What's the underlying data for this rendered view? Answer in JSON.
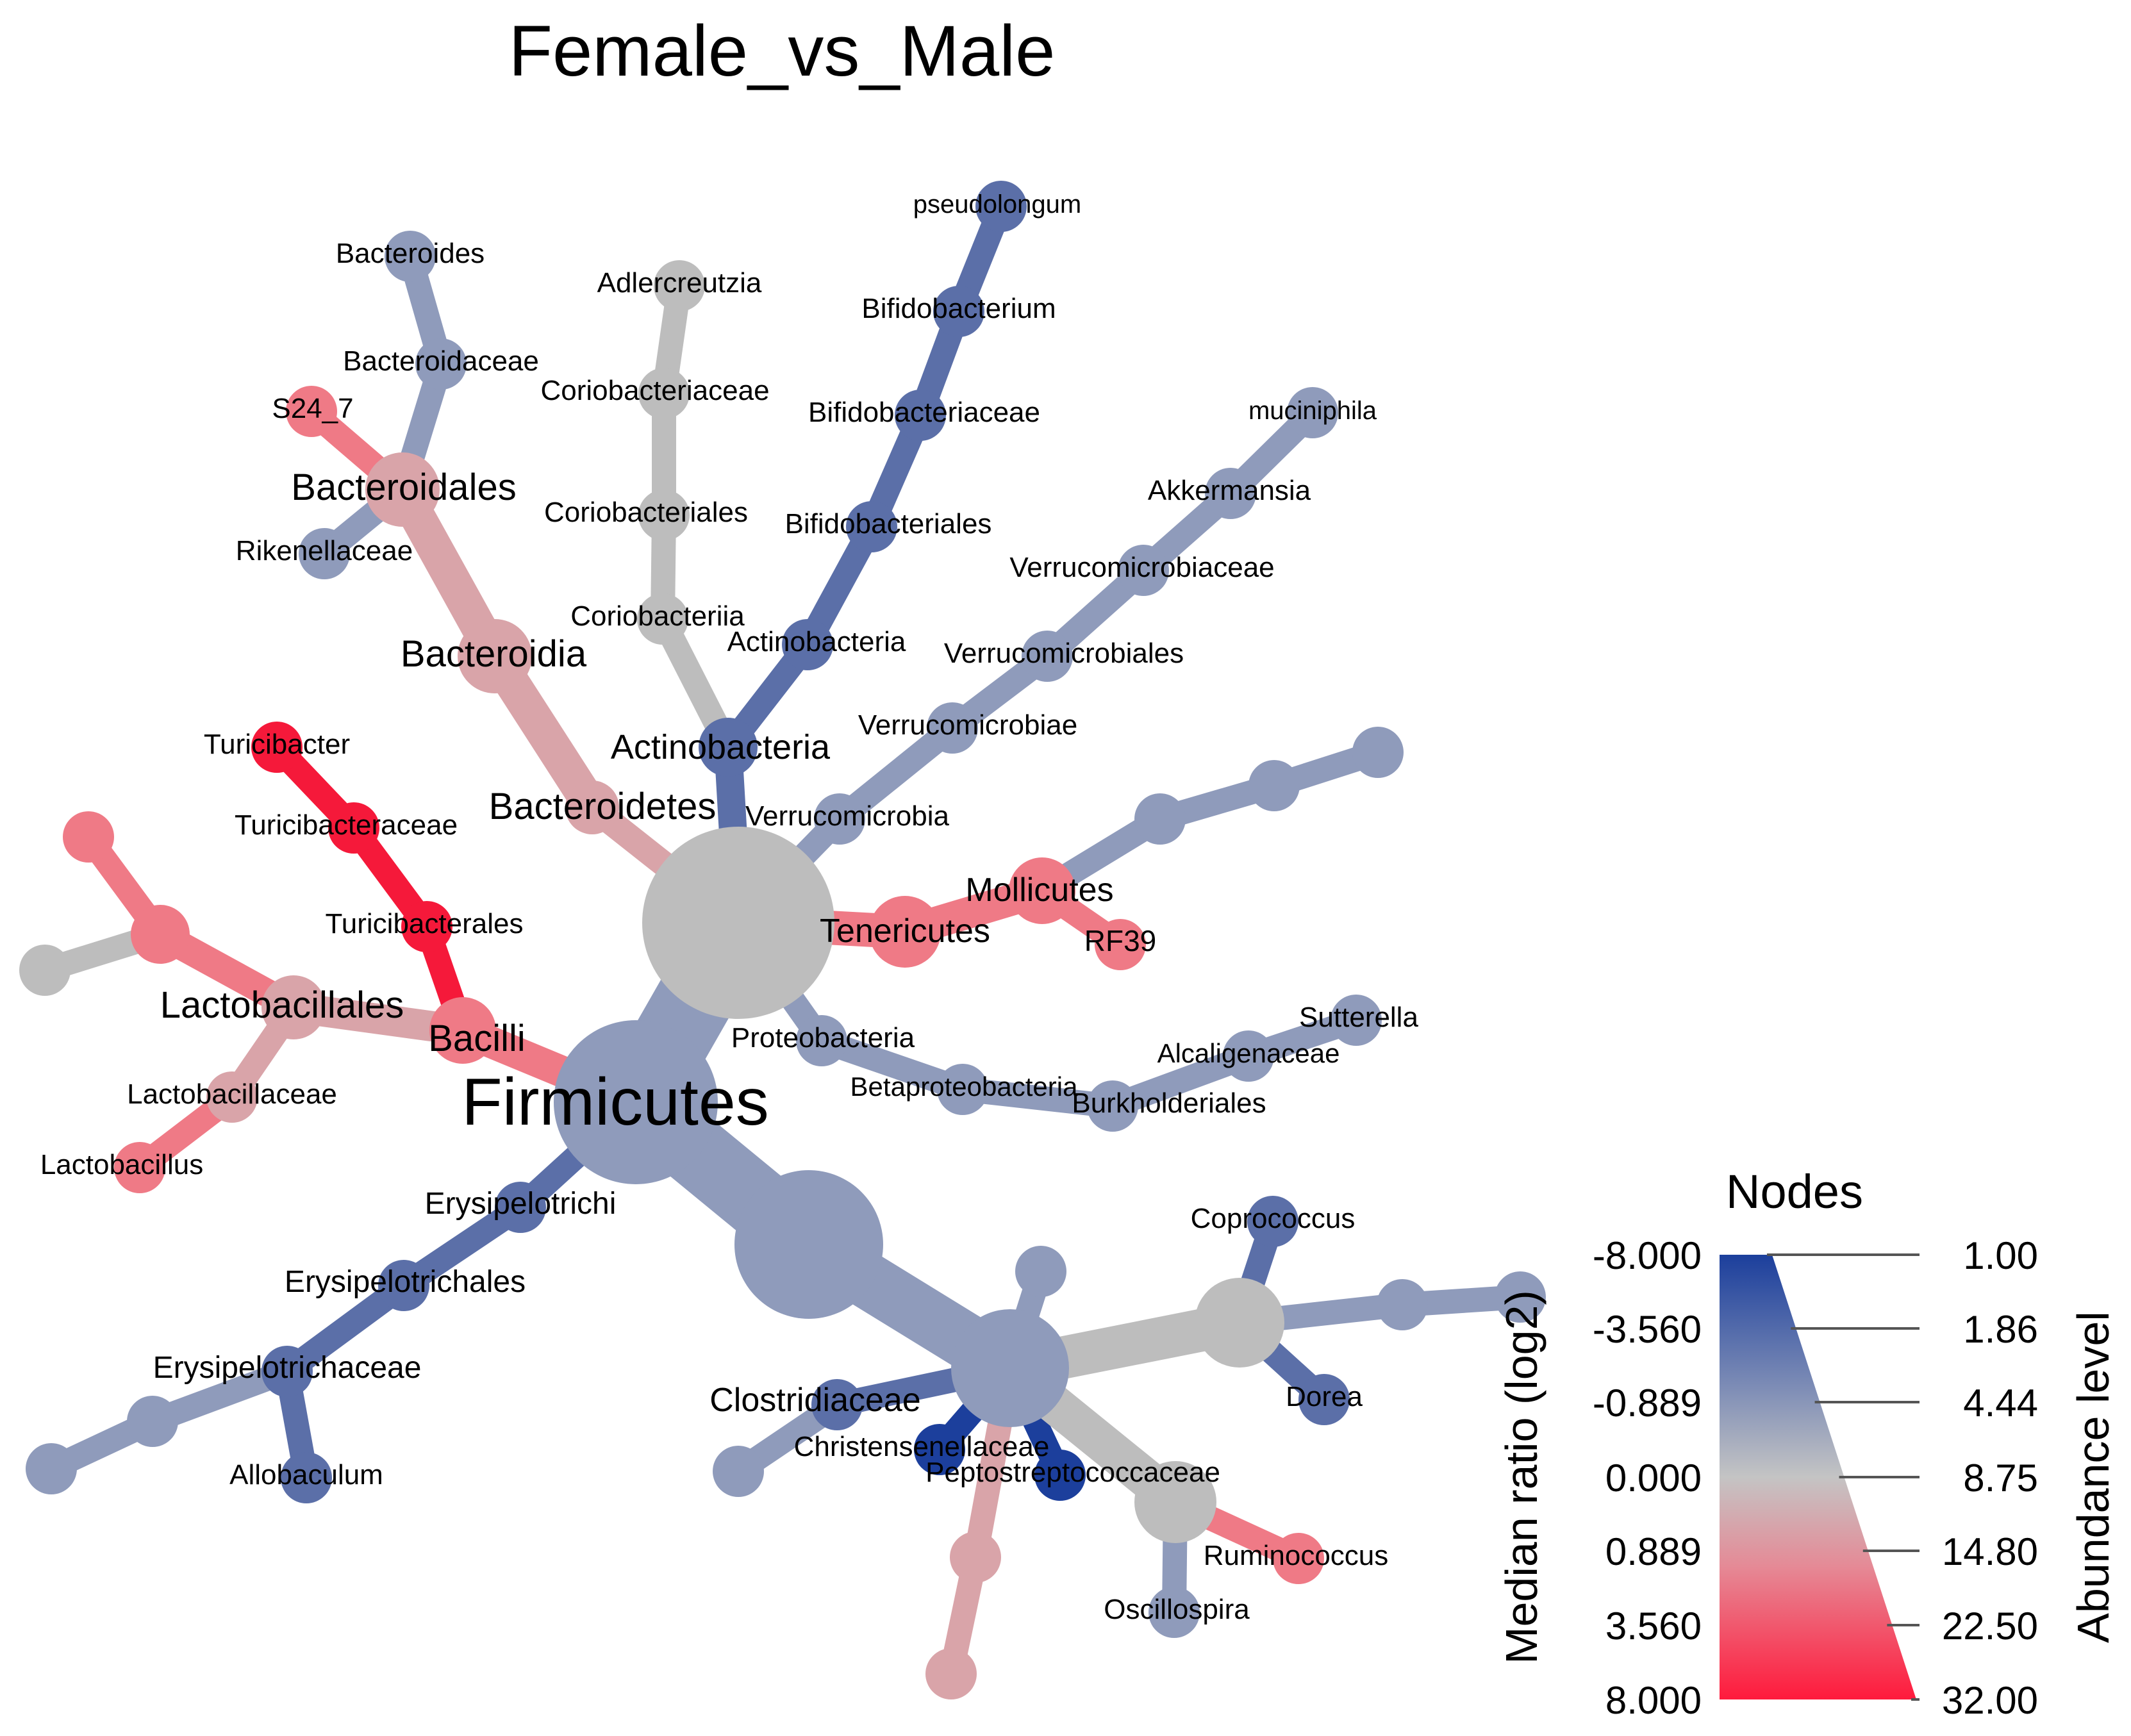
{
  "title": "Female_vs_Male",
  "colors": {
    "neg_strong": "#1c3f9c",
    "neg_mid": "#5b6fa8",
    "neg_light": "#8f9bbb",
    "neutral": "#bdbdbd",
    "pos_light": "#d9a4a9",
    "pos_mid": "#ef7a86",
    "pos_strong": "#f5193a"
  },
  "nodes": [
    {
      "id": "root",
      "label": "",
      "color": "neutral"
    },
    {
      "id": "firmicutes",
      "label": "Firmicutes",
      "color": "neg_light"
    },
    {
      "id": "bacilli",
      "label": "Bacilli",
      "color": "pos_mid"
    },
    {
      "id": "lactobacillales",
      "label": "Lactobacillales",
      "color": "pos_light"
    },
    {
      "id": "lactobacillaceae",
      "label": "Lactobacillaceae",
      "color": "pos_light"
    },
    {
      "id": "lactobacillus",
      "label": "Lactobacillus",
      "color": "pos_mid"
    },
    {
      "id": "lac_u1",
      "label": "",
      "color": "pos_mid"
    },
    {
      "id": "lac_u2",
      "label": "",
      "color": "pos_mid"
    },
    {
      "id": "lac_u3",
      "label": "",
      "color": "neutral"
    },
    {
      "id": "turicibacterales",
      "label": "Turicibacterales",
      "color": "pos_strong"
    },
    {
      "id": "turicibacteraceae",
      "label": "Turicibacteraceae",
      "color": "pos_strong"
    },
    {
      "id": "turicibacter",
      "label": "Turicibacter",
      "color": "pos_strong"
    },
    {
      "id": "erysipelotrichi",
      "label": "Erysipelotrichi",
      "color": "neg_mid"
    },
    {
      "id": "erysipelotrichales",
      "label": "Erysipelotrichales",
      "color": "neg_mid"
    },
    {
      "id": "erysipelotrichaceae",
      "label": "Erysipelotrichaceae",
      "color": "neg_mid"
    },
    {
      "id": "allobaculum",
      "label": "Allobaculum",
      "color": "neg_mid"
    },
    {
      "id": "ery_u1",
      "label": "",
      "color": "neg_light"
    },
    {
      "id": "ery_u2",
      "label": "",
      "color": "neg_light"
    },
    {
      "id": "clostridia",
      "label": "",
      "color": "neg_light"
    },
    {
      "id": "clostridiales",
      "label": "",
      "color": "neg_light"
    },
    {
      "id": "clo_top",
      "label": "",
      "color": "neg_light"
    },
    {
      "id": "lachnospiraceae",
      "label": "",
      "color": "neutral"
    },
    {
      "id": "coprococcus",
      "label": "Coprococcus",
      "color": "neg_mid"
    },
    {
      "id": "dorea",
      "label": "Dorea",
      "color": "neg_mid"
    },
    {
      "id": "lach_u1",
      "label": "",
      "color": "neg_light"
    },
    {
      "id": "lach_u2",
      "label": "",
      "color": "neg_light"
    },
    {
      "id": "clostridiaceae",
      "label": "Clostridiaceae",
      "color": "neg_mid"
    },
    {
      "id": "clostridiaceae_g",
      "label": "",
      "color": "neg_light"
    },
    {
      "id": "christensenellaceae",
      "label": "Christensenellaceae",
      "color": "neg_strong"
    },
    {
      "id": "peptostreptococcaceae",
      "label": "Peptostreptococcaceae",
      "color": "neg_strong"
    },
    {
      "id": "clo_u1",
      "label": "",
      "color": "pos_light"
    },
    {
      "id": "clo_u2",
      "label": "",
      "color": "pos_light"
    },
    {
      "id": "ruminococcaceae",
      "label": "",
      "color": "neutral"
    },
    {
      "id": "ruminococcus",
      "label": "Ruminococcus",
      "color": "pos_mid"
    },
    {
      "id": "oscillospira",
      "label": "Oscillospira",
      "color": "neg_light"
    },
    {
      "id": "bacteroidetes",
      "label": "Bacteroidetes",
      "color": "pos_light"
    },
    {
      "id": "bacteroidia",
      "label": "Bacteroidia",
      "color": "pos_light"
    },
    {
      "id": "bacteroidales",
      "label": "Bacteroidales",
      "color": "pos_light"
    },
    {
      "id": "s24_7",
      "label": "S24_7",
      "color": "pos_mid"
    },
    {
      "id": "bacteroidaceae",
      "label": "Bacteroidaceae",
      "color": "neg_light"
    },
    {
      "id": "bacteroides",
      "label": "Bacteroides",
      "color": "neg_light"
    },
    {
      "id": "rikenellaceae",
      "label": "Rikenellaceae",
      "color": "neg_light"
    },
    {
      "id": "actinobacteria_p",
      "label": "Actinobacteria",
      "color": "neg_mid"
    },
    {
      "id": "coriobacteriia",
      "label": "Coriobacteriia",
      "color": "neutral"
    },
    {
      "id": "coriobacteriales",
      "label": "Coriobacteriales",
      "color": "neutral"
    },
    {
      "id": "coriobacteriaceae",
      "label": "Coriobacteriaceae",
      "color": "neutral"
    },
    {
      "id": "adlercreutzia",
      "label": "Adlercreutzia",
      "color": "neutral"
    },
    {
      "id": "actinobacteria_c",
      "label": "Actinobacteria",
      "color": "neg_mid"
    },
    {
      "id": "bifidobacteriales",
      "label": "Bifidobacteriales",
      "color": "neg_mid"
    },
    {
      "id": "bifidobacteriaceae",
      "label": "Bifidobacteriaceae",
      "color": "neg_mid"
    },
    {
      "id": "bifidobacterium",
      "label": "Bifidobacterium",
      "color": "neg_mid"
    },
    {
      "id": "pseudolongum",
      "label": "pseudolongum",
      "color": "neg_mid"
    },
    {
      "id": "verrucomicrobia",
      "label": "Verrucomicrobia",
      "color": "neg_light"
    },
    {
      "id": "verrucomicrobiae",
      "label": "Verrucomicrobiae",
      "color": "neg_light"
    },
    {
      "id": "verrucomicrobiales",
      "label": "Verrucomicrobiales",
      "color": "neg_light"
    },
    {
      "id": "verrucomicrobiaceae",
      "label": "Verrucomicrobiaceae",
      "color": "neg_light"
    },
    {
      "id": "akkermansia",
      "label": "Akkermansia",
      "color": "neg_light"
    },
    {
      "id": "muciniphila",
      "label": "muciniphila",
      "color": "neg_light"
    },
    {
      "id": "tenericutes",
      "label": "Tenericutes",
      "color": "pos_mid"
    },
    {
      "id": "mollicutes",
      "label": "Mollicutes",
      "color": "pos_mid"
    },
    {
      "id": "rf39",
      "label": "RF39",
      "color": "pos_mid"
    },
    {
      "id": "moll_u1",
      "label": "",
      "color": "neg_light"
    },
    {
      "id": "moll_u2",
      "label": "",
      "color": "neg_light"
    },
    {
      "id": "moll_u3",
      "label": "",
      "color": "neg_light"
    },
    {
      "id": "proteobacteria",
      "label": "Proteobacteria",
      "color": "neg_light"
    },
    {
      "id": "betaproteobacteria",
      "label": "Betaproteobacteria",
      "color": "neg_light"
    },
    {
      "id": "burkholderiales",
      "label": "Burkholderiales",
      "color": "neg_light"
    },
    {
      "id": "alcaligenaceae",
      "label": "Alcaligenaceae",
      "color": "neg_light"
    },
    {
      "id": "sutterella",
      "label": "Sutterella",
      "color": "neg_light"
    }
  ],
  "legend": {
    "title": "Nodes",
    "color_axis_label": "Median ratio (log2)",
    "size_axis_label": "Abundance level",
    "color_ticks": [
      "-8.000",
      "-3.560",
      "-0.889",
      "0.000",
      "0.889",
      "3.560",
      "8.000"
    ],
    "size_ticks": [
      "1.00",
      "1.86",
      "4.44",
      "8.75",
      "14.80",
      "22.50",
      "32.00"
    ]
  }
}
